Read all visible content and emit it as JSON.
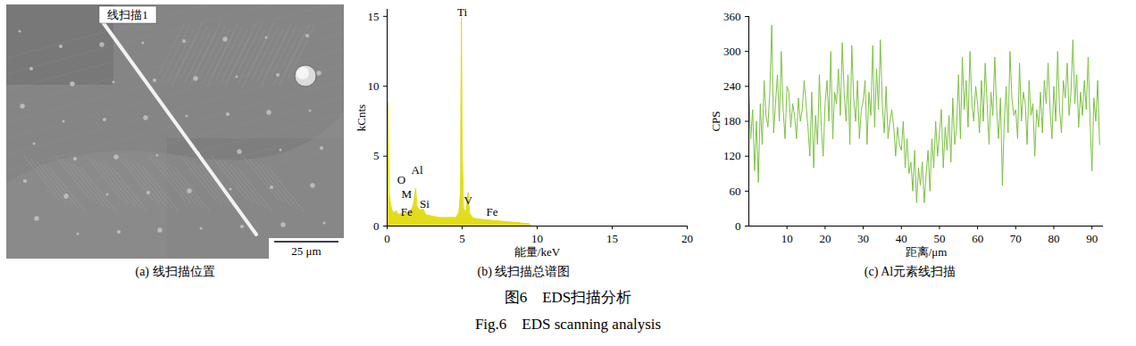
{
  "image_panel": {
    "title": "(a) 线扫描位置",
    "scan_label": "线扫描1",
    "scale_bar": "25 μm"
  },
  "chart_data": [
    {
      "type": "area",
      "title": "(b) 线扫描总谱图",
      "x_label": "能量/keV",
      "y_label": "kCnts",
      "color": "#e3dc1c",
      "x": [
        0,
        0.05,
        0.15,
        0.3,
        0.5,
        0.6,
        0.75,
        0.9,
        1.1,
        1.3,
        1.5,
        1.7,
        1.8,
        1.9,
        2.0,
        2.2,
        2.4,
        2.6,
        3.0,
        3.5,
        4.0,
        4.6,
        4.8,
        4.9,
        4.95,
        5.0,
        5.1,
        5.25,
        5.4,
        5.5,
        5.7,
        6.0,
        6.5,
        7.0,
        8.0,
        9.0,
        9.5,
        9.6,
        20
      ],
      "values": [
        0,
        8.8,
        2.2,
        1.2,
        0.9,
        1.1,
        0.8,
        0.9,
        0.8,
        0.9,
        1.0,
        1.3,
        1.8,
        2.7,
        1.4,
        1.1,
        1.2,
        0.8,
        0.7,
        0.6,
        0.6,
        0.6,
        1.0,
        2.5,
        14.9,
        6.0,
        1.3,
        0.9,
        2.4,
        0.9,
        0.6,
        0.5,
        0.45,
        0.4,
        0.3,
        0.2,
        0.15,
        0,
        0
      ],
      "xlim": [
        0,
        20
      ],
      "xticks": [
        0,
        5,
        10,
        15,
        20
      ],
      "ylim": [
        0,
        15.5
      ],
      "yticks": [
        0,
        5,
        10,
        15
      ],
      "annotations": [
        {
          "text": "Ti",
          "x": 5.0,
          "y": 15.3
        },
        {
          "text": "O",
          "x": 0.95,
          "y": 3.3
        },
        {
          "text": "Al",
          "x": 2.0,
          "y": 4.0
        },
        {
          "text": "M",
          "x": 1.3,
          "y": 2.3
        },
        {
          "text": "Si",
          "x": 2.5,
          "y": 1.6
        },
        {
          "text": "Fe",
          "x": 1.3,
          "y": 1.0
        },
        {
          "text": "V",
          "x": 5.4,
          "y": 1.8
        },
        {
          "text": "Fe",
          "x": 7.0,
          "y": 1.0
        }
      ]
    },
    {
      "type": "line",
      "title": "(c) Al元素线扫描",
      "x_label": "距离/μm",
      "y_label": "CPS",
      "color": "#7cc242",
      "x": [
        0,
        0.5,
        1,
        1.5,
        2,
        2.5,
        3,
        3.5,
        4,
        4.5,
        5,
        5.5,
        6,
        6.5,
        7,
        7.5,
        8,
        8.5,
        9,
        9.5,
        10,
        10.5,
        11,
        11.5,
        12,
        12.5,
        13,
        13.5,
        14,
        14.5,
        15,
        15.5,
        16,
        16.5,
        17,
        17.5,
        18,
        18.5,
        19,
        19.5,
        20,
        20.5,
        21,
        21.5,
        22,
        22.5,
        23,
        23.5,
        24,
        24.5,
        25,
        25.5,
        26,
        26.5,
        27,
        27.5,
        28,
        28.5,
        29,
        29.5,
        30,
        30.5,
        31,
        31.5,
        32,
        32.5,
        33,
        33.5,
        34,
        34.5,
        35,
        35.5,
        36,
        36.5,
        37,
        37.5,
        38,
        38.5,
        39,
        39.5,
        40,
        40.5,
        41,
        41.5,
        42,
        42.5,
        43,
        43.5,
        44,
        44.5,
        45,
        45.5,
        46,
        46.5,
        47,
        47.5,
        48,
        48.5,
        49,
        49.5,
        50,
        50.5,
        51,
        51.5,
        52,
        52.5,
        53,
        53.5,
        54,
        54.5,
        55,
        55.5,
        56,
        56.5,
        57,
        57.5,
        58,
        58.5,
        59,
        59.5,
        60,
        60.5,
        61,
        61.5,
        62,
        62.5,
        63,
        63.5,
        64,
        64.5,
        65,
        65.5,
        66,
        66.5,
        67,
        67.5,
        68,
        68.5,
        69,
        69.5,
        70,
        70.5,
        71,
        71.5,
        72,
        72.5,
        73,
        73.5,
        74,
        74.5,
        75,
        75.5,
        76,
        76.5,
        77,
        77.5,
        78,
        78.5,
        79,
        79.5,
        80,
        80.5,
        81,
        81.5,
        82,
        82.5,
        83,
        83.5,
        84,
        84.5,
        85,
        85.5,
        86,
        86.5,
        87,
        87.5,
        88,
        88.5,
        89,
        89.5,
        90,
        90.5,
        91,
        91.5,
        92
      ],
      "values": [
        230,
        150,
        200,
        95,
        180,
        75,
        210,
        140,
        250,
        190,
        170,
        230,
        345,
        160,
        210,
        260,
        180,
        300,
        200,
        150,
        240,
        230,
        170,
        210,
        190,
        150,
        220,
        180,
        200,
        250,
        210,
        170,
        120,
        230,
        100,
        190,
        140,
        260,
        170,
        120,
        210,
        250,
        180,
        300,
        150,
        230,
        210,
        270,
        190,
        315,
        230,
        180,
        260,
        140,
        310,
        220,
        180,
        250,
        150,
        200,
        215,
        250,
        140,
        230,
        190,
        310,
        170,
        270,
        200,
        320,
        210,
        160,
        240,
        150,
        180,
        200,
        170,
        120,
        170,
        140,
        130,
        180,
        100,
        150,
        90,
        110,
        60,
        130,
        40,
        100,
        70,
        110,
        40,
        90,
        130,
        60,
        150,
        100,
        180,
        120,
        160,
        200,
        100,
        170,
        130,
        190,
        110,
        220,
        140,
        170,
        260,
        150,
        290,
        200,
        250,
        170,
        300,
        210,
        180,
        240,
        210,
        160,
        250,
        180,
        280,
        210,
        140,
        230,
        190,
        290,
        200,
        150,
        220,
        70,
        180,
        240,
        160,
        300,
        220,
        190,
        200,
        150,
        280,
        180,
        230,
        210,
        140,
        250,
        190,
        210,
        120,
        200,
        170,
        230,
        160,
        250,
        210,
        280,
        200,
        150,
        240,
        180,
        300,
        200,
        160,
        250,
        220,
        280,
        190,
        230,
        320,
        210,
        260,
        170,
        230,
        190,
        250,
        200,
        290,
        180,
        95,
        220,
        180,
        250,
        140
      ],
      "xlim": [
        0,
        93
      ],
      "xticks": [
        10,
        20,
        30,
        40,
        50,
        60,
        70,
        80,
        90
      ],
      "ylim": [
        0,
        360
      ],
      "yticks": [
        0,
        60,
        120,
        180,
        240,
        300,
        360
      ]
    }
  ],
  "figure_caption": {
    "zh": "图6　EDS扫描分析",
    "en": "Fig.6　EDS scanning analysis"
  }
}
